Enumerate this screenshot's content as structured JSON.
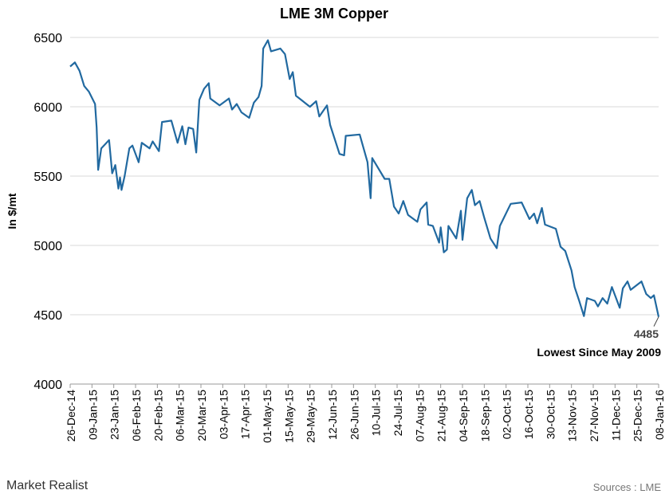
{
  "chart_data": {
    "type": "line",
    "title": "LME 3M Copper",
    "y_label": "In $/mt",
    "color": "#2169a0",
    "grid": true,
    "ylim": [
      4000,
      6500
    ],
    "yticks": [
      4000,
      4500,
      5000,
      5500,
      6000,
      6500
    ],
    "xlim": [
      "2014-12-26",
      "2016-01-08"
    ],
    "xticks": [
      {
        "value": "2014-12-26",
        "label": "26-Dec-14"
      },
      {
        "value": "2015-01-09",
        "label": "09-Jan-15"
      },
      {
        "value": "2015-01-23",
        "label": "23-Jan-15"
      },
      {
        "value": "2015-02-06",
        "label": "06-Feb-15"
      },
      {
        "value": "2015-02-20",
        "label": "20-Feb-15"
      },
      {
        "value": "2015-03-06",
        "label": "06-Mar-15"
      },
      {
        "value": "2015-03-20",
        "label": "20-Mar-15"
      },
      {
        "value": "2015-04-03",
        "label": "03-Apr-15"
      },
      {
        "value": "2015-04-17",
        "label": "17-Apr-15"
      },
      {
        "value": "2015-05-01",
        "label": "01-May-15"
      },
      {
        "value": "2015-05-15",
        "label": "15-May-15"
      },
      {
        "value": "2015-05-29",
        "label": "29-May-15"
      },
      {
        "value": "2015-06-12",
        "label": "12-Jun-15"
      },
      {
        "value": "2015-06-26",
        "label": "26-Jun-15"
      },
      {
        "value": "2015-07-10",
        "label": "10-Jul-15"
      },
      {
        "value": "2015-07-24",
        "label": "24-Jul-15"
      },
      {
        "value": "2015-08-07",
        "label": "07-Aug-15"
      },
      {
        "value": "2015-08-21",
        "label": "21-Aug-15"
      },
      {
        "value": "2015-09-04",
        "label": "04-Sep-15"
      },
      {
        "value": "2015-09-18",
        "label": "18-Sep-15"
      },
      {
        "value": "2015-10-02",
        "label": "02-Oct-15"
      },
      {
        "value": "2015-10-16",
        "label": "16-Oct-15"
      },
      {
        "value": "2015-10-30",
        "label": "30-Oct-15"
      },
      {
        "value": "2015-11-13",
        "label": "13-Nov-15"
      },
      {
        "value": "2015-11-27",
        "label": "27-Nov-15"
      },
      {
        "value": "2015-12-11",
        "label": "11-Dec-15"
      },
      {
        "value": "2015-12-25",
        "label": "25-Dec-15"
      },
      {
        "value": "2016-01-08",
        "label": "08-Jan-16"
      }
    ],
    "x": [
      "2014-12-26",
      "2014-12-29",
      "2015-01-01",
      "2015-01-04",
      "2015-01-07",
      "2015-01-11",
      "2015-01-12",
      "2015-01-13",
      "2015-01-15",
      "2015-01-20",
      "2015-01-22",
      "2015-01-24",
      "2015-01-26",
      "2015-01-27",
      "2015-01-28",
      "2015-01-30",
      "2015-02-02",
      "2015-02-04",
      "2015-02-08",
      "2015-02-10",
      "2015-02-15",
      "2015-02-17",
      "2015-02-21",
      "2015-02-23",
      "2015-03-01",
      "2015-03-05",
      "2015-03-08",
      "2015-03-10",
      "2015-03-12",
      "2015-03-15",
      "2015-03-17",
      "2015-03-19",
      "2015-03-22",
      "2015-03-25",
      "2015-03-26",
      "2015-04-01",
      "2015-04-07",
      "2015-04-09",
      "2015-04-12",
      "2015-04-15",
      "2015-04-20",
      "2015-04-23",
      "2015-04-26",
      "2015-04-28",
      "2015-04-29",
      "2015-05-02",
      "2015-05-04",
      "2015-05-10",
      "2015-05-13",
      "2015-05-16",
      "2015-05-18",
      "2015-05-20",
      "2015-05-29",
      "2015-06-02",
      "2015-06-04",
      "2015-06-09",
      "2015-06-11",
      "2015-06-17",
      "2015-06-20",
      "2015-06-21",
      "2015-06-30",
      "2015-07-05",
      "2015-07-07",
      "2015-07-08",
      "2015-07-16",
      "2015-07-19",
      "2015-07-22",
      "2015-07-25",
      "2015-07-28",
      "2015-07-31",
      "2015-08-06",
      "2015-08-08",
      "2015-08-12",
      "2015-08-13",
      "2015-08-16",
      "2015-08-20",
      "2015-08-21",
      "2015-08-23",
      "2015-08-25",
      "2015-08-26",
      "2015-08-31",
      "2015-09-03",
      "2015-09-04",
      "2015-09-07",
      "2015-09-10",
      "2015-09-12",
      "2015-09-15",
      "2015-09-18",
      "2015-09-22",
      "2015-09-26",
      "2015-09-28",
      "2015-10-05",
      "2015-10-12",
      "2015-10-17",
      "2015-10-20",
      "2015-10-22",
      "2015-10-25",
      "2015-10-27",
      "2015-11-03",
      "2015-11-06",
      "2015-11-09",
      "2015-11-13",
      "2015-11-15",
      "2015-11-18",
      "2015-11-21",
      "2015-11-23",
      "2015-11-28",
      "2015-11-30",
      "2015-12-03",
      "2015-12-06",
      "2015-12-09",
      "2015-12-14",
      "2015-12-16",
      "2015-12-19",
      "2015-12-21",
      "2015-12-28",
      "2015-12-31",
      "2016-01-03",
      "2016-01-05",
      "2016-01-08"
    ],
    "values": [
      6290,
      6320,
      6260,
      6150,
      6110,
      6020,
      5850,
      5545,
      5700,
      5760,
      5520,
      5580,
      5410,
      5490,
      5400,
      5500,
      5700,
      5720,
      5600,
      5740,
      5700,
      5750,
      5680,
      5890,
      5900,
      5740,
      5860,
      5730,
      5850,
      5840,
      5670,
      6050,
      6130,
      6170,
      6060,
      6010,
      6060,
      5980,
      6020,
      5960,
      5920,
      6030,
      6070,
      6150,
      6420,
      6480,
      6400,
      6420,
      6380,
      6200,
      6250,
      6080,
      6000,
      6040,
      5930,
      6010,
      5870,
      5660,
      5650,
      5790,
      5800,
      5600,
      5340,
      5630,
      5480,
      5480,
      5280,
      5230,
      5320,
      5220,
      5170,
      5260,
      5310,
      5150,
      5140,
      5020,
      5130,
      4950,
      4970,
      5140,
      5050,
      5250,
      5040,
      5340,
      5400,
      5290,
      5320,
      5200,
      5050,
      4980,
      5140,
      5300,
      5310,
      5190,
      5230,
      5160,
      5270,
      5150,
      5120,
      4990,
      4960,
      4820,
      4700,
      4600,
      4490,
      4620,
      4600,
      4560,
      4620,
      4580,
      4700,
      4550,
      4690,
      4740,
      4680,
      4740,
      4650,
      4620,
      4640,
      4485
    ],
    "annotations": [
      "4485",
      "Lowest Since May 2009"
    ],
    "brand": "Market Realist",
    "source": "Sources : LME"
  }
}
